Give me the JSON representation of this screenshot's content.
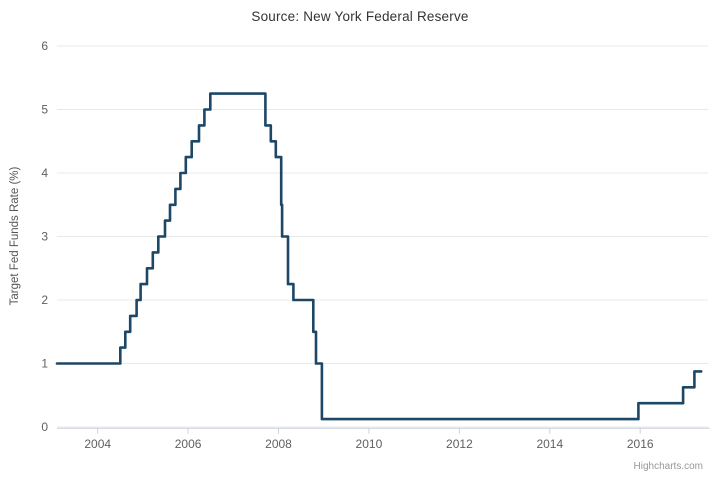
{
  "credit": "Highcharts.com",
  "colors": {
    "line": "#1c4766",
    "grid": "#e8e8e8",
    "axis_line": "#ccd1db",
    "title_text": "#333333",
    "axis_label_text": "#606060",
    "y_axis_title_text": "#555555",
    "credit_text": "#999999",
    "background": "#ffffff"
  },
  "chart_data": {
    "type": "line",
    "step": "left",
    "title": "Source: New York Federal Reserve",
    "xlabel": "",
    "ylabel": "Target Fed Funds Rate (%)",
    "xlim": [
      2003.1,
      2017.5
    ],
    "ylim": [
      0,
      6
    ],
    "x_ticks": [
      2004,
      2006,
      2008,
      2010,
      2012,
      2014,
      2016
    ],
    "x_tick_labels": [
      "2004",
      "2006",
      "2008",
      "2010",
      "2012",
      "2014",
      "2016"
    ],
    "y_ticks": [
      0,
      1,
      2,
      3,
      4,
      5,
      6
    ],
    "y_tick_labels": [
      "0",
      "1",
      "2",
      "3",
      "4",
      "5",
      "6"
    ],
    "grid": true,
    "legend": false,
    "series": [
      {
        "name": "Target Fed Funds Rate",
        "color": "#1c4766",
        "points": [
          [
            2003.1,
            1.0
          ],
          [
            2004.5,
            1.25
          ],
          [
            2004.61,
            1.5
          ],
          [
            2004.72,
            1.75
          ],
          [
            2004.86,
            2.0
          ],
          [
            2004.95,
            2.25
          ],
          [
            2005.09,
            2.5
          ],
          [
            2005.22,
            2.75
          ],
          [
            2005.34,
            3.0
          ],
          [
            2005.49,
            3.25
          ],
          [
            2005.6,
            3.5
          ],
          [
            2005.72,
            3.75
          ],
          [
            2005.83,
            4.0
          ],
          [
            2005.95,
            4.25
          ],
          [
            2006.08,
            4.5
          ],
          [
            2006.24,
            4.75
          ],
          [
            2006.36,
            5.0
          ],
          [
            2006.49,
            5.25
          ],
          [
            2007.71,
            4.75
          ],
          [
            2007.83,
            4.5
          ],
          [
            2007.94,
            4.25
          ],
          [
            2008.06,
            3.5
          ],
          [
            2008.08,
            3.0
          ],
          [
            2008.21,
            2.25
          ],
          [
            2008.33,
            2.0
          ],
          [
            2008.77,
            1.5
          ],
          [
            2008.83,
            1.0
          ],
          [
            2008.96,
            0.125
          ],
          [
            2015.96,
            0.375
          ],
          [
            2016.95,
            0.625
          ],
          [
            2017.2,
            0.875
          ],
          [
            2017.35,
            0.875
          ]
        ]
      }
    ]
  }
}
